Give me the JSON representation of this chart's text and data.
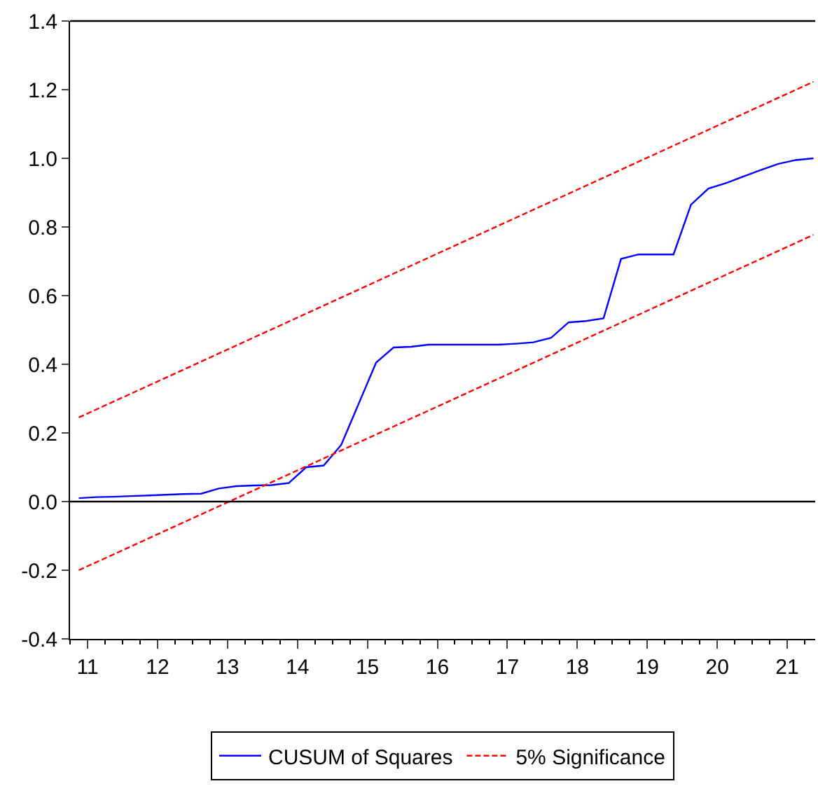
{
  "chart_data": {
    "type": "line",
    "xlim": [
      10.75,
      21.4
    ],
    "ylim": [
      -0.4,
      1.4
    ],
    "xticks": [
      11,
      12,
      13,
      14,
      15,
      16,
      17,
      18,
      19,
      20,
      21
    ],
    "yticks": [
      {
        "value": -0.4,
        "label": "-0.4"
      },
      {
        "value": -0.2,
        "label": "-0.2"
      },
      {
        "value": 0,
        "label": "0.0"
      },
      {
        "value": 0.2,
        "label": "0.2"
      },
      {
        "value": 0.4,
        "label": "0.4"
      },
      {
        "value": 0.6,
        "label": "0.6"
      },
      {
        "value": 0.8,
        "label": "0.8"
      },
      {
        "value": 1.0,
        "label": "1.0"
      },
      {
        "value": 1.2,
        "label": "1.2"
      },
      {
        "value": 1.4,
        "label": "1.4"
      }
    ],
    "legend": "bottom",
    "marker": "none",
    "ref_lines": [
      {
        "axis": "y",
        "value": 0,
        "color": "#000000",
        "line_style": "solid"
      }
    ],
    "series": [
      {
        "name": "CUSUM of Squares",
        "color": "#0000ff",
        "line_style": "solid",
        "x": [
          10.875,
          11.125,
          11.375,
          11.625,
          11.875,
          12.125,
          12.375,
          12.625,
          12.875,
          13.125,
          13.375,
          13.625,
          13.875,
          14.125,
          14.375,
          14.625,
          14.875,
          15.125,
          15.375,
          15.625,
          15.875,
          16.125,
          16.375,
          16.625,
          16.875,
          17.125,
          17.375,
          17.625,
          17.875,
          18.125,
          18.375,
          18.625,
          18.875,
          19.125,
          19.375,
          19.625,
          19.875,
          20.125,
          20.375,
          20.625,
          20.875,
          21.125,
          21.375
        ],
        "values": [
          0.01,
          0.013,
          0.014,
          0.016,
          0.018,
          0.02,
          0.022,
          0.023,
          0.038,
          0.045,
          0.047,
          0.048,
          0.054,
          0.1,
          0.105,
          0.165,
          0.285,
          0.405,
          0.449,
          0.451,
          0.457,
          0.457,
          0.457,
          0.457,
          0.457,
          0.46,
          0.464,
          0.477,
          0.522,
          0.526,
          0.534,
          0.707,
          0.72,
          0.72,
          0.72,
          0.865,
          0.912,
          0.928,
          0.947,
          0.966,
          0.984,
          0.995,
          1.0
        ]
      },
      {
        "name": "5% Significance",
        "color": "#ff0000",
        "line_style": "dashed",
        "x": [
          10.875,
          21.375
        ],
        "values": [
          0.245,
          1.223
        ]
      },
      {
        "color": "#ff0000",
        "line_style": "dashed",
        "x": [
          10.875,
          21.375
        ],
        "values": [
          -0.2,
          0.777
        ]
      }
    ]
  }
}
